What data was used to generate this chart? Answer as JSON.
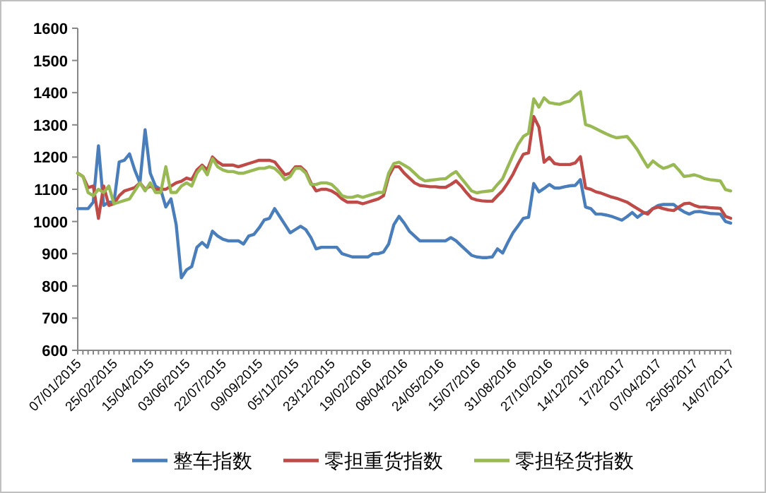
{
  "chart_data": {
    "type": "line",
    "categories": [
      "07/01/2015",
      null,
      null,
      null,
      null,
      null,
      null,
      "25/02/2015",
      null,
      null,
      null,
      null,
      null,
      null,
      "15/04/2015",
      null,
      null,
      null,
      null,
      null,
      null,
      "03/06/2015",
      null,
      null,
      null,
      null,
      null,
      null,
      "22/07/2015",
      null,
      null,
      null,
      null,
      null,
      null,
      "09/09/2015",
      null,
      null,
      null,
      null,
      null,
      null,
      "05/11/2015",
      null,
      null,
      null,
      null,
      null,
      null,
      "23/12/2015",
      null,
      null,
      null,
      null,
      null,
      null,
      "19/02/2016",
      null,
      null,
      null,
      null,
      null,
      null,
      "08/04/2016",
      null,
      null,
      null,
      null,
      null,
      null,
      "24/05/2016",
      null,
      null,
      null,
      null,
      null,
      null,
      "15/07/2016",
      null,
      null,
      null,
      null,
      null,
      null,
      "31/08/2016",
      null,
      null,
      null,
      null,
      null,
      null,
      "27/10/2016",
      null,
      null,
      null,
      null,
      null,
      null,
      "14/12/2016",
      null,
      null,
      null,
      null,
      null,
      null,
      "17/2/2017",
      null,
      null,
      null,
      null,
      null,
      null,
      "07/04/2017",
      null,
      null,
      null,
      null,
      null,
      null,
      "25/05/2017",
      null,
      null,
      null,
      null,
      null,
      null,
      "14/07/2017"
    ],
    "series": [
      {
        "name": "整车指数",
        "color": "#4a7ebb",
        "values": [
          1040,
          1040,
          1040,
          1060,
          1235,
          1050,
          1060,
          1060,
          1185,
          1190,
          1210,
          1160,
          1120,
          1285,
          1150,
          1110,
          1100,
          1045,
          1070,
          990,
          825,
          850,
          860,
          920,
          935,
          920,
          970,
          955,
          945,
          940,
          940,
          940,
          930,
          955,
          960,
          980,
          1005,
          1010,
          1040,
          1015,
          990,
          965,
          975,
          985,
          975,
          950,
          915,
          920,
          920,
          920,
          920,
          900,
          895,
          890,
          890,
          890,
          890,
          900,
          900,
          905,
          930,
          990,
          1016,
          995,
          970,
          955,
          940,
          940,
          940,
          940,
          940,
          940,
          950,
          940,
          925,
          910,
          895,
          890,
          888,
          888,
          890,
          915,
          902,
          935,
          965,
          987,
          1010,
          1013,
          1118,
          1092,
          1103,
          1115,
          1104,
          1104,
          1108,
          1111,
          1112,
          1130,
          1045,
          1040,
          1023,
          1023,
          1020,
          1016,
          1010,
          1004,
          1015,
          1028,
          1013,
          1025,
          1028,
          1040,
          1050,
          1053,
          1053,
          1053,
          1040,
          1030,
          1023,
          1030,
          1031,
          1028,
          1025,
          1024,
          1023,
          1000,
          995
        ]
      },
      {
        "name": "零担重货指数",
        "color": "#be4b48",
        "values": [
          1150,
          1140,
          1105,
          1110,
          1010,
          1110,
          1050,
          1055,
          1080,
          1095,
          1100,
          1105,
          1120,
          1100,
          1110,
          1100,
          1100,
          1100,
          1110,
          1120,
          1125,
          1135,
          1130,
          1160,
          1175,
          1160,
          1200,
          1185,
          1175,
          1175,
          1175,
          1170,
          1175,
          1180,
          1185,
          1190,
          1190,
          1190,
          1185,
          1165,
          1145,
          1150,
          1170,
          1170,
          1155,
          1120,
          1095,
          1100,
          1100,
          1095,
          1085,
          1070,
          1060,
          1060,
          1060,
          1055,
          1060,
          1065,
          1070,
          1080,
          1140,
          1170,
          1170,
          1150,
          1135,
          1120,
          1112,
          1110,
          1108,
          1108,
          1106,
          1106,
          1115,
          1126,
          1110,
          1090,
          1072,
          1067,
          1064,
          1063,
          1063,
          1080,
          1096,
          1120,
          1147,
          1180,
          1209,
          1213,
          1326,
          1293,
          1184,
          1199,
          1180,
          1177,
          1177,
          1177,
          1182,
          1201,
          1104,
          1100,
          1092,
          1088,
          1082,
          1076,
          1072,
          1066,
          1060,
          1050,
          1040,
          1030,
          1023,
          1040,
          1045,
          1040,
          1036,
          1034,
          1045,
          1055,
          1057,
          1050,
          1045,
          1045,
          1043,
          1042,
          1041,
          1016,
          1010
        ]
      },
      {
        "name": "零担轻货指数",
        "color": "#98b954",
        "values": [
          1150,
          1140,
          1090,
          1080,
          1100,
          1090,
          1110,
          1055,
          1060,
          1065,
          1070,
          1095,
          1120,
          1095,
          1120,
          1090,
          1090,
          1170,
          1090,
          1090,
          1110,
          1120,
          1110,
          1150,
          1170,
          1145,
          1195,
          1170,
          1160,
          1155,
          1155,
          1150,
          1150,
          1155,
          1160,
          1165,
          1165,
          1170,
          1165,
          1150,
          1130,
          1140,
          1165,
          1165,
          1150,
          1115,
          1115,
          1120,
          1120,
          1115,
          1100,
          1080,
          1075,
          1075,
          1080,
          1075,
          1080,
          1085,
          1090,
          1090,
          1150,
          1180,
          1184,
          1175,
          1165,
          1150,
          1135,
          1126,
          1128,
          1130,
          1132,
          1133,
          1145,
          1155,
          1135,
          1115,
          1095,
          1089,
          1092,
          1094,
          1096,
          1115,
          1133,
          1170,
          1206,
          1240,
          1264,
          1274,
          1381,
          1355,
          1384,
          1369,
          1366,
          1364,
          1370,
          1374,
          1390,
          1403,
          1301,
          1296,
          1288,
          1280,
          1272,
          1265,
          1260,
          1262,
          1264,
          1245,
          1223,
          1195,
          1169,
          1188,
          1175,
          1165,
          1170,
          1177,
          1160,
          1140,
          1142,
          1145,
          1140,
          1133,
          1130,
          1128,
          1126,
          1099,
          1095
        ]
      }
    ],
    "ylim": [
      600,
      1600
    ],
    "yticks": [
      600,
      700,
      800,
      900,
      1000,
      1100,
      1200,
      1300,
      1400,
      1500,
      1600
    ],
    "legend": "bottom"
  }
}
